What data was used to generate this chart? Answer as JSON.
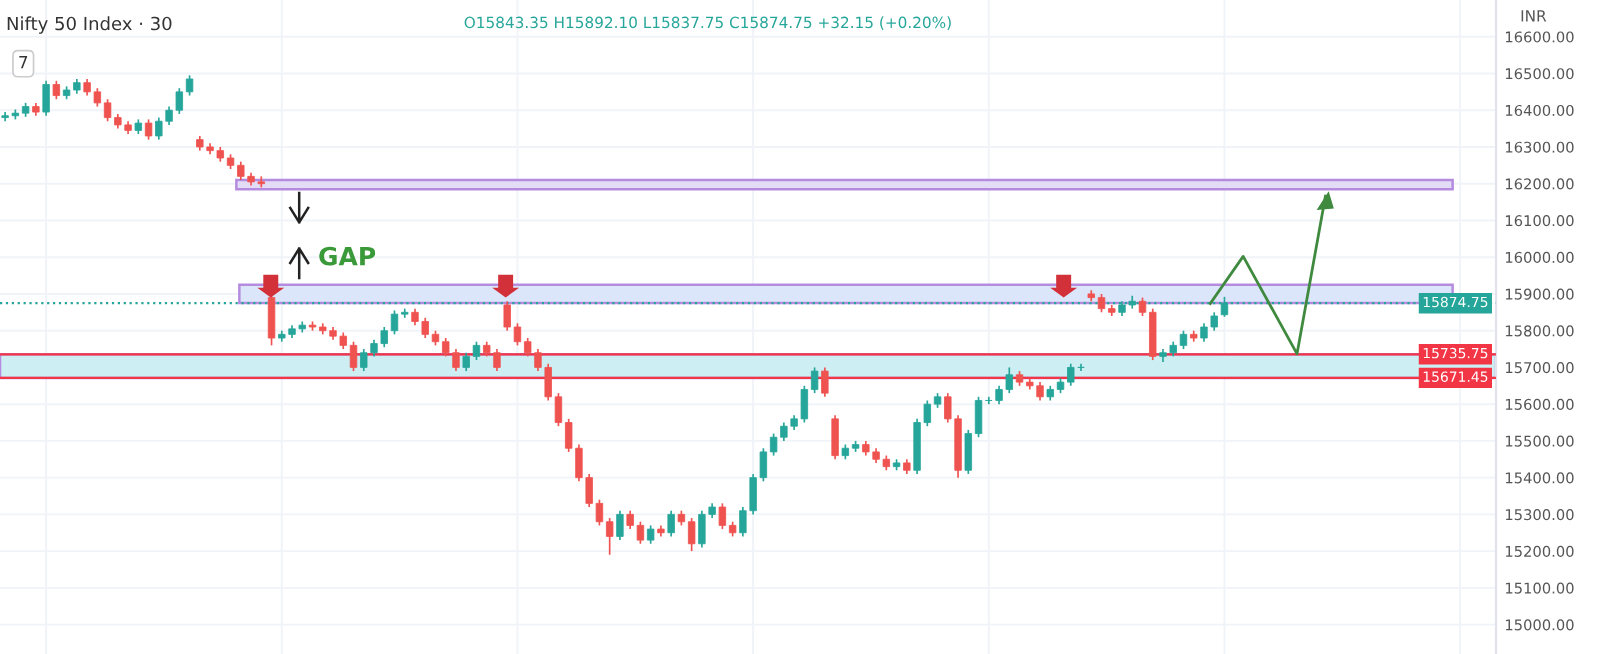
{
  "chart_data": {
    "type": "candlestick",
    "title": "Nifty 50 Index · 30",
    "ylabel": "INR",
    "annotations": [
      "O15843.35 H15892.10 L15837.75 C15874.75 +32.15 (+0.20%)",
      "7",
      "GAP"
    ],
    "categories": [
      null,
      null,
      null,
      null,
      null,
      null,
      null,
      null,
      null,
      null,
      null,
      null,
      null,
      null,
      null,
      null,
      null,
      null,
      null,
      null,
      null,
      null,
      null,
      null,
      null,
      null,
      null,
      null,
      null,
      null,
      null,
      null,
      null,
      null,
      null,
      null,
      null,
      null,
      null,
      null,
      null,
      null,
      null,
      null,
      null,
      null,
      null,
      null,
      null,
      null,
      null,
      null,
      null,
      null,
      null,
      null,
      null,
      null,
      null,
      null,
      null,
      null,
      null,
      null,
      null,
      null,
      null,
      null,
      null,
      null,
      null,
      null,
      null,
      null,
      null,
      null,
      null,
      null,
      null,
      null,
      null,
      null,
      null,
      null,
      null,
      null,
      null,
      null,
      null,
      null,
      null,
      null,
      null,
      null,
      null,
      null,
      null,
      null,
      null,
      null,
      null,
      null,
      null,
      null,
      null,
      null,
      null,
      null,
      null,
      null,
      null,
      null,
      null,
      null,
      null,
      null,
      null,
      null,
      null,
      null,
      null,
      null,
      null,
      null,
      null,
      null,
      null,
      null,
      null,
      null,
      null,
      null,
      null,
      null,
      null,
      null,
      null,
      null,
      null,
      null,
      null,
      null,
      null,
      null,
      null,
      null
    ],
    "colors": [
      "#26a69a",
      "#26a69a",
      "#26a69a",
      "#ef5350",
      "#26a69a",
      "#ef5350",
      "#26a69a",
      "#26a69a",
      "#ef5350",
      "#ef5350",
      "#ef5350",
      "#ef5350",
      "#ef5350",
      "#26a69a",
      "#ef5350",
      "#26a69a",
      "#26a69a",
      "#26a69a",
      "#26a69a",
      "#ef5350",
      "#ef5350",
      "#ef5350",
      "#ef5350",
      "#ef5350",
      "#ef5350",
      "#ef5350",
      "#ef5350",
      "#26a69a",
      "#26a69a",
      "#26a69a",
      "#ef5350",
      "#ef5350",
      "#ef5350",
      "#ef5350",
      "#ef5350",
      "#26a69a",
      "#26a69a",
      "#26a69a",
      "#26a69a",
      "#26a69a",
      "#ef5350",
      "#ef5350",
      "#ef5350",
      "#ef5350",
      "#ef5350",
      "#26a69a",
      "#26a69a",
      "#ef5350",
      "#ef5350",
      "#ef5350",
      "#ef5350",
      "#ef5350",
      "#ef5350",
      "#ef5350",
      "#ef5350",
      "#ef5350",
      "#ef5350",
      "#ef5350",
      "#ef5350",
      "#ef5350",
      "#26a69a",
      "#ef5350",
      "#ef5350",
      "#26a69a",
      "#ef5350",
      "#26a69a",
      "#ef5350",
      "#ef5350",
      "#26a69a",
      "#26a69a",
      "#ef5350",
      "#ef5350",
      "#26a69a",
      "#26a69a",
      "#26a69a",
      "#26a69a",
      "#26a69a",
      "#26a69a",
      "#26a69a",
      "#26a69a",
      "#ef5350",
      "#ef5350",
      "#26a69a",
      "#26a69a",
      "#ef5350",
      "#ef5350",
      "#ef5350",
      "#26a69a",
      "#ef5350",
      "#26a69a",
      "#26a69a",
      "#26a69a",
      "#ef5350",
      "#ef5350",
      "#26a69a",
      "#26a69a",
      "#26a69a",
      "#26a69a",
      "#26a69a",
      "#ef5350",
      "#ef5350",
      "#ef5350",
      "#26a69a",
      "#26a69a",
      "#26a69a",
      "#26a69a",
      "#ef5350",
      "#ef5350",
      "#ef5350",
      "#26a69a",
      "#26a69a",
      "#ef5350",
      "#ef5350",
      "#26a69a",
      "#26a69a",
      "#26a69a",
      "#ef5350",
      "#26a69a",
      "#26a69a",
      "#26a69a",
      null,
      null,
      null,
      null,
      null,
      null,
      null,
      null,
      null,
      null,
      null,
      null,
      null,
      null,
      null,
      null,
      null,
      null,
      null,
      null,
      null,
      null,
      null,
      null,
      null,
      null
    ],
    "ohlc": [
      [
        16380,
        16395,
        16370,
        16385
      ],
      [
        16385,
        16402,
        16375,
        16392
      ],
      [
        16392,
        16420,
        16382,
        16410
      ],
      [
        16410,
        16420,
        16385,
        16395
      ],
      [
        16395,
        16480,
        16385,
        16470
      ],
      [
        16470,
        16480,
        16430,
        16440
      ],
      [
        16440,
        16465,
        16430,
        16455
      ],
      [
        16455,
        16485,
        16445,
        16475
      ],
      [
        16475,
        16485,
        16440,
        16450
      ],
      [
        16450,
        16460,
        16410,
        16420
      ],
      [
        16420,
        16430,
        16370,
        16380
      ],
      [
        16380,
        16390,
        16350,
        16360
      ],
      [
        16360,
        16370,
        16335,
        16345
      ],
      [
        16345,
        16375,
        16335,
        16365
      ],
      [
        16365,
        16375,
        16320,
        16330
      ],
      [
        16330,
        16380,
        16320,
        16370
      ],
      [
        16370,
        16410,
        16360,
        16400
      ],
      [
        16400,
        16460,
        16390,
        16450
      ],
      [
        16450,
        16495,
        16440,
        16485
      ],
      [
        16320,
        16330,
        16290,
        16300
      ],
      [
        16300,
        16310,
        16280,
        16290
      ],
      [
        16290,
        16300,
        16260,
        16270
      ],
      [
        16270,
        16280,
        16240,
        16250
      ],
      [
        16250,
        16260,
        16210,
        16220
      ],
      [
        16220,
        16230,
        16195,
        16205
      ],
      [
        16205,
        16220,
        16190,
        16200
      ],
      [
        15890,
        15900,
        15760,
        15780
      ],
      [
        15780,
        15800,
        15770,
        15790
      ],
      [
        15790,
        15815,
        15780,
        15805
      ],
      [
        15805,
        15825,
        15795,
        15815
      ],
      [
        15815,
        15825,
        15800,
        15810
      ],
      [
        15810,
        15820,
        15790,
        15800
      ],
      [
        15800,
        15810,
        15775,
        15785
      ],
      [
        15785,
        15795,
        15750,
        15760
      ],
      [
        15760,
        15770,
        15690,
        15700
      ],
      [
        15700,
        15750,
        15690,
        15740
      ],
      [
        15740,
        15775,
        15730,
        15765
      ],
      [
        15765,
        15810,
        15755,
        15800
      ],
      [
        15800,
        15855,
        15790,
        15845
      ],
      [
        15845,
        15860,
        15835,
        15850
      ],
      [
        15850,
        15860,
        15815,
        15825
      ],
      [
        15825,
        15835,
        15780,
        15790
      ],
      [
        15790,
        15800,
        15760,
        15770
      ],
      [
        15770,
        15780,
        15730,
        15740
      ],
      [
        15740,
        15750,
        15690,
        15700
      ],
      [
        15700,
        15740,
        15690,
        15730
      ],
      [
        15730,
        15770,
        15720,
        15760
      ],
      [
        15760,
        15770,
        15730,
        15740
      ],
      [
        15740,
        15750,
        15690,
        15700
      ],
      [
        15870,
        15880,
        15800,
        15810
      ],
      [
        15810,
        15820,
        15760,
        15770
      ],
      [
        15770,
        15780,
        15730,
        15740
      ],
      [
        15740,
        15750,
        15690,
        15700
      ],
      [
        15700,
        15710,
        15610,
        15620
      ],
      [
        15620,
        15630,
        15540,
        15550
      ],
      [
        15550,
        15560,
        15470,
        15480
      ],
      [
        15480,
        15490,
        15390,
        15400
      ],
      [
        15400,
        15410,
        15320,
        15330
      ],
      [
        15330,
        15340,
        15270,
        15280
      ],
      [
        15280,
        15290,
        15190,
        15240
      ],
      [
        15240,
        15310,
        15230,
        15300
      ],
      [
        15300,
        15310,
        15260,
        15270
      ],
      [
        15270,
        15280,
        15220,
        15230
      ],
      [
        15230,
        15270,
        15220,
        15260
      ],
      [
        15260,
        15270,
        15240,
        15250
      ],
      [
        15250,
        15310,
        15240,
        15300
      ],
      [
        15300,
        15310,
        15270,
        15280
      ],
      [
        15280,
        15290,
        15200,
        15220
      ],
      [
        15220,
        15310,
        15210,
        15300
      ],
      [
        15300,
        15330,
        15290,
        15320
      ],
      [
        15320,
        15330,
        15260,
        15270
      ],
      [
        15270,
        15280,
        15240,
        15250
      ],
      [
        15250,
        15320,
        15240,
        15310
      ],
      [
        15310,
        15410,
        15300,
        15400
      ],
      [
        15400,
        15480,
        15390,
        15470
      ],
      [
        15470,
        15520,
        15460,
        15510
      ],
      [
        15510,
        15550,
        15500,
        15540
      ],
      [
        15540,
        15570,
        15530,
        15560
      ],
      [
        15560,
        15650,
        15550,
        15640
      ],
      [
        15640,
        15700,
        15630,
        15690
      ],
      [
        15690,
        15700,
        15620,
        15630
      ],
      [
        15560,
        15570,
        15450,
        15460
      ],
      [
        15460,
        15490,
        15450,
        15480
      ],
      [
        15480,
        15500,
        15470,
        15490
      ],
      [
        15490,
        15500,
        15460,
        15470
      ],
      [
        15470,
        15480,
        15440,
        15450
      ],
      [
        15450,
        15460,
        15420,
        15430
      ],
      [
        15430,
        15450,
        15420,
        15440
      ],
      [
        15440,
        15450,
        15410,
        15420
      ],
      [
        15420,
        15560,
        15410,
        15550
      ],
      [
        15550,
        15610,
        15540,
        15600
      ],
      [
        15600,
        15630,
        15590,
        15620
      ],
      [
        15620,
        15630,
        15550,
        15560
      ],
      [
        15560,
        15570,
        15400,
        15420
      ],
      [
        15420,
        15530,
        15410,
        15520
      ],
      [
        15520,
        15620,
        15510,
        15610
      ],
      [
        15610,
        15620,
        15600,
        15610
      ],
      [
        15610,
        15650,
        15600,
        15640
      ],
      [
        15640,
        15700,
        15630,
        15680
      ],
      [
        15680,
        15690,
        15650,
        15660
      ],
      [
        15660,
        15670,
        15640,
        15650
      ],
      [
        15650,
        15660,
        15610,
        15620
      ],
      [
        15620,
        15650,
        15610,
        15640
      ],
      [
        15640,
        15670,
        15630,
        15660
      ],
      [
        15660,
        15710,
        15650,
        15700
      ],
      [
        15700,
        15710,
        15690,
        15700
      ],
      [
        15900,
        15910,
        15880,
        15890
      ],
      [
        15890,
        15900,
        15850,
        15860
      ],
      [
        15860,
        15870,
        15840,
        15850
      ],
      [
        15850,
        15880,
        15840,
        15870
      ],
      [
        15870,
        15895,
        15860,
        15880
      ],
      [
        15880,
        15890,
        15840,
        15850
      ],
      [
        15850,
        15860,
        15720,
        15730
      ],
      [
        15730,
        15750,
        15715,
        15740
      ],
      [
        15740,
        15770,
        15730,
        15760
      ],
      [
        15760,
        15800,
        15750,
        15790
      ],
      [
        15790,
        15800,
        15770,
        15780
      ],
      [
        15780,
        15820,
        15770,
        15810
      ],
      [
        15810,
        15850,
        15800,
        15840
      ],
      [
        15843.35,
        15892.1,
        15837.75,
        15874.75
      ],
      null,
      null,
      null,
      null,
      null,
      null,
      null,
      null,
      null,
      null,
      null,
      null,
      null,
      null,
      null,
      null,
      null,
      null,
      null,
      null,
      null,
      null,
      null,
      null,
      null,
      null
    ],
    "ylim": [
      14920,
      16700
    ],
    "yticks": [
      {
        "value": 15000,
        "label": "15000.00"
      },
      {
        "value": 15100,
        "label": "15100.00"
      },
      {
        "value": 15200,
        "label": "15200.00"
      },
      {
        "value": 15300,
        "label": "15300.00"
      },
      {
        "value": 15400,
        "label": "15400.00"
      },
      {
        "value": 15500,
        "label": "15500.00"
      },
      {
        "value": 15600,
        "label": "15600.00"
      },
      {
        "value": 15700,
        "label": "15700.00"
      },
      {
        "value": 15800,
        "label": "15800.00"
      },
      {
        "value": 15900,
        "label": "15900.00"
      },
      {
        "value": 16000,
        "label": "16000.00"
      },
      {
        "value": 16100,
        "label": "16100.00"
      },
      {
        "value": 16200,
        "label": "16200.00"
      },
      {
        "value": 16300,
        "label": "16300.00"
      },
      {
        "value": 16400,
        "label": "16400.00"
      },
      {
        "value": 16500,
        "label": "16500.00"
      },
      {
        "value": 16600,
        "label": "16600.00"
      }
    ],
    "tick_labels": "y",
    "grid": true,
    "bands": [
      {
        "axis": "y",
        "from": 16185,
        "to": 16210,
        "color": "#e3dcf7"
      },
      {
        "axis": "y",
        "from": 15875,
        "to": 15925,
        "color": "#dbe6fb"
      },
      {
        "axis": "y",
        "from": 15671.45,
        "to": 15735.75,
        "color": "#cdeff4"
      }
    ],
    "ref_lines": [
      {
        "axis": "y",
        "value": 15874.75,
        "label": "15874.75",
        "color": "#26a69a",
        "line_style": "dotted"
      },
      {
        "axis": "y",
        "value": 15735.75,
        "label": "15735.75",
        "color": "#f23645",
        "line_style": "solid"
      },
      {
        "axis": "y",
        "value": 15671.45,
        "label": "15671.45",
        "color": "#f23645",
        "line_style": "solid"
      }
    ]
  }
}
